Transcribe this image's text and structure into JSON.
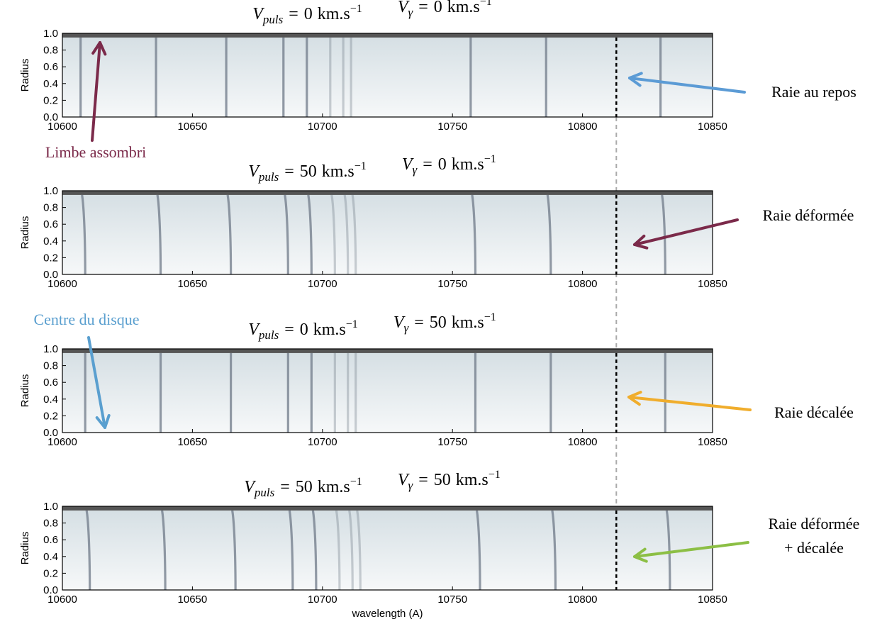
{
  "chart_data": [
    {
      "type": "spectral-image",
      "title": {
        "relation": "=",
        "parts": [
          {
            "symbol": "V",
            "subscript": "puls",
            "value": 0,
            "unit": "km.s",
            "exponent": "−1"
          },
          {
            "symbol": "V",
            "subscript": "γ",
            "value": 0,
            "unit": "km.s",
            "exponent": "−1"
          }
        ]
      },
      "ylabel": "Radius",
      "xlim": [
        10600,
        10850
      ],
      "xticks": [
        10600,
        10650,
        10700,
        10750,
        10800,
        10850
      ],
      "ylim": [
        0,
        1
      ],
      "yticks": [
        {
          "value": 0,
          "label": "0.0"
        },
        {
          "value": 0.2,
          "label": "0.2"
        },
        {
          "value": 0.4,
          "label": "0.4"
        },
        {
          "value": 0.6,
          "label": "0.6"
        },
        {
          "value": 0.8,
          "label": "0.8"
        },
        {
          "value": 1,
          "label": "1.0"
        }
      ],
      "line_wavelengths": [
        10607,
        10636,
        10663,
        10685,
        10694,
        10703,
        10708,
        10711,
        10757,
        10786,
        10830
      ]
    },
    {
      "type": "spectral-image",
      "title": {
        "relation": "=",
        "parts": [
          {
            "symbol": "V",
            "subscript": "puls",
            "value": 50,
            "unit": "km.s",
            "exponent": "−1"
          },
          {
            "symbol": "V",
            "subscript": "γ",
            "value": 0,
            "unit": "km.s",
            "exponent": "−1"
          }
        ]
      },
      "ylabel": "Radius",
      "xlim": [
        10600,
        10850
      ],
      "xticks": [
        10600,
        10650,
        10700,
        10750,
        10800,
        10850
      ],
      "ylim": [
        0,
        1
      ],
      "yticks": [
        {
          "value": 0,
          "label": "0.0"
        },
        {
          "value": 0.2,
          "label": "0.2"
        },
        {
          "value": 0.4,
          "label": "0.4"
        },
        {
          "value": 0.6,
          "label": "0.6"
        },
        {
          "value": 0.8,
          "label": "0.8"
        },
        {
          "value": 1,
          "label": "1.0"
        }
      ],
      "line_wavelengths": [
        10607,
        10636,
        10663,
        10685,
        10694,
        10703,
        10708,
        10711,
        10757,
        10786,
        10830
      ]
    },
    {
      "type": "spectral-image",
      "title": {
        "relation": "=",
        "parts": [
          {
            "symbol": "V",
            "subscript": "puls",
            "value": 0,
            "unit": "km.s",
            "exponent": "−1"
          },
          {
            "symbol": "V",
            "subscript": "γ",
            "value": 50,
            "unit": "km.s",
            "exponent": "−1"
          }
        ]
      },
      "ylabel": "Radius",
      "xlim": [
        10600,
        10850
      ],
      "xticks": [
        10600,
        10650,
        10700,
        10750,
        10800,
        10850
      ],
      "ylim": [
        0,
        1
      ],
      "yticks": [
        {
          "value": 0,
          "label": "0.0"
        },
        {
          "value": 0.2,
          "label": "0.2"
        },
        {
          "value": 0.4,
          "label": "0.4"
        },
        {
          "value": 0.6,
          "label": "0.6"
        },
        {
          "value": 0.8,
          "label": "0.8"
        },
        {
          "value": 1,
          "label": "1.0"
        }
      ],
      "line_wavelengths": [
        10607,
        10636,
        10663,
        10685,
        10694,
        10703,
        10708,
        10711,
        10757,
        10786,
        10830
      ]
    },
    {
      "type": "spectral-image",
      "title": {
        "relation": "=",
        "parts": [
          {
            "symbol": "V",
            "subscript": "puls",
            "value": 50,
            "unit": "km.s",
            "exponent": "−1"
          },
          {
            "symbol": "V",
            "subscript": "γ",
            "value": 50,
            "unit": "km.s",
            "exponent": "−1"
          }
        ]
      },
      "ylabel": "Radius",
      "xlabel": "wavelength (A)",
      "xlim": [
        10600,
        10850
      ],
      "xticks": [
        10600,
        10650,
        10700,
        10750,
        10800,
        10850
      ],
      "ylim": [
        0,
        1
      ],
      "yticks": [
        {
          "value": 0,
          "label": "0.0"
        },
        {
          "value": 0.2,
          "label": "0.2"
        },
        {
          "value": 0.4,
          "label": "0.4"
        },
        {
          "value": 0.6,
          "label": "0.6"
        },
        {
          "value": 0.8,
          "label": "0.8"
        },
        {
          "value": 1,
          "label": "1.0"
        }
      ],
      "line_wavelengths": [
        10607,
        10636,
        10663,
        10685,
        10694,
        10703,
        10708,
        10711,
        10757,
        10786,
        10830
      ]
    }
  ],
  "reference_wavelength": 10813,
  "annotations": [
    {
      "lines": [
        "Limbe assombri"
      ],
      "color": "#7b2a4a"
    },
    {
      "lines": [
        "Raie au repos"
      ],
      "color": "#5b9bd5"
    },
    {
      "lines": [
        "Raie déformée"
      ],
      "color": "#7b2a4a"
    },
    {
      "lines": [
        "Centre du disque"
      ],
      "color": "#5a9fcf"
    },
    {
      "lines": [
        "Raie décalée"
      ],
      "color": "#f0ad2c"
    },
    {
      "lines": [
        "Raie déformée",
        "+ décalée"
      ],
      "color": "#8cbf45"
    }
  ]
}
